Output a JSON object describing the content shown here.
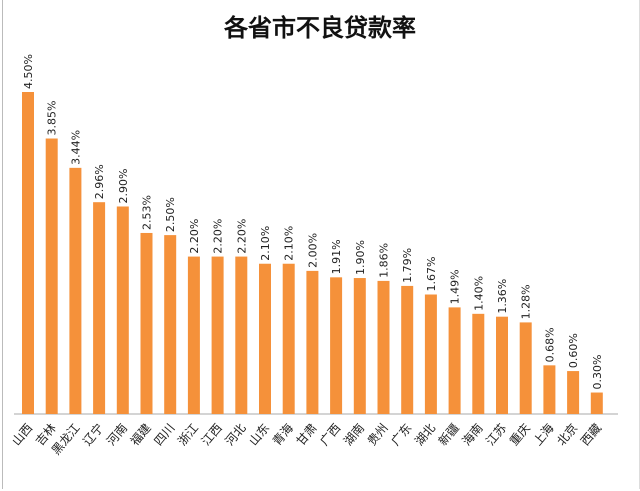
{
  "chart_data": {
    "type": "bar",
    "title": "各省市不良贷款率",
    "categories": [
      "山西",
      "吉林",
      "黑龙江",
      "辽宁",
      "河南",
      "福建",
      "四川",
      "浙江",
      "江西",
      "河北",
      "山东",
      "青海",
      "甘肃",
      "广西",
      "湖南",
      "贵州",
      "广东",
      "湖北",
      "新疆",
      "海南",
      "江苏",
      "重庆",
      "上海",
      "北京",
      "西藏"
    ],
    "values": [
      4.5,
      3.85,
      3.44,
      2.96,
      2.9,
      2.53,
      2.5,
      2.2,
      2.2,
      2.2,
      2.1,
      2.1,
      2.0,
      1.91,
      1.9,
      1.86,
      1.79,
      1.67,
      1.49,
      1.4,
      1.36,
      1.28,
      0.68,
      0.6,
      0.3
    ],
    "labels": [
      "4.50%",
      "3.85%",
      "3.44%",
      "2.96%",
      "2.90%",
      "2.53%",
      "2.50%",
      "2.20%",
      "2.20%",
      "2.20%",
      "2.10%",
      "2.10%",
      "2.00%",
      "1.91%",
      "1.90%",
      "1.86%",
      "1.79%",
      "1.67%",
      "1.49%",
      "1.40%",
      "1.36%",
      "1.28%",
      "0.68%",
      "0.60%",
      "0.30%"
    ],
    "unit": "%",
    "ylim": [
      0,
      4.5
    ],
    "grid": false,
    "colors": {
      "bar": "#F5913A",
      "label": "#222222",
      "axis": "#aaaaaa"
    }
  }
}
